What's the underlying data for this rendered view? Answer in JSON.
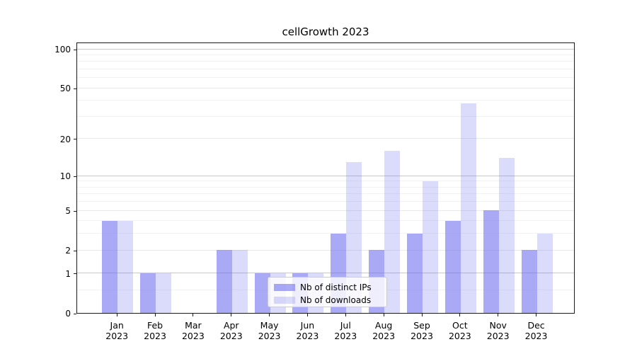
{
  "chart_data": {
    "type": "bar",
    "title": "cellGrowth 2023",
    "categories": [
      "Jan 2023",
      "Feb 2023",
      "Mar 2023",
      "Apr 2023",
      "May 2023",
      "Jun 2023",
      "Jul 2023",
      "Aug 2023",
      "Sep 2023",
      "Oct 2023",
      "Nov 2023",
      "Dec 2023"
    ],
    "series": [
      {
        "name": "Nb of distinct IPs",
        "color_rgba": "rgba(107,107,240,0.585)",
        "color_hex": "#a8a8f6",
        "values": [
          4,
          1,
          0,
          2,
          1,
          1,
          3,
          2,
          3,
          4,
          5,
          2
        ]
      },
      {
        "name": "Nb of downloads",
        "color_rgba": "rgba(107,107,240,0.245)",
        "color_hex": "#dbdbfb",
        "values": [
          4,
          1,
          0,
          2,
          1,
          1,
          13,
          16,
          9,
          38,
          14,
          3
        ]
      }
    ],
    "xlabel": "",
    "ylabel": "",
    "y_axis": {
      "scale": "log1p",
      "tick_labels": [
        "0",
        "1",
        "2",
        "5",
        "10",
        "20",
        "50",
        "100"
      ],
      "ticks": [
        0,
        1,
        2,
        5,
        10,
        20,
        50,
        100
      ],
      "minor_ticks": [
        0.5,
        3,
        4,
        6,
        7,
        8,
        9,
        30,
        40,
        60,
        70,
        80,
        90
      ],
      "range": [
        0,
        113
      ]
    },
    "grid": true,
    "legend_position": "inside lower-center",
    "grid_colors": {
      "decade_line": "#c8c8c8",
      "labeled_line": "#e9e9e9",
      "minor_line": "#f2f2f2"
    }
  }
}
